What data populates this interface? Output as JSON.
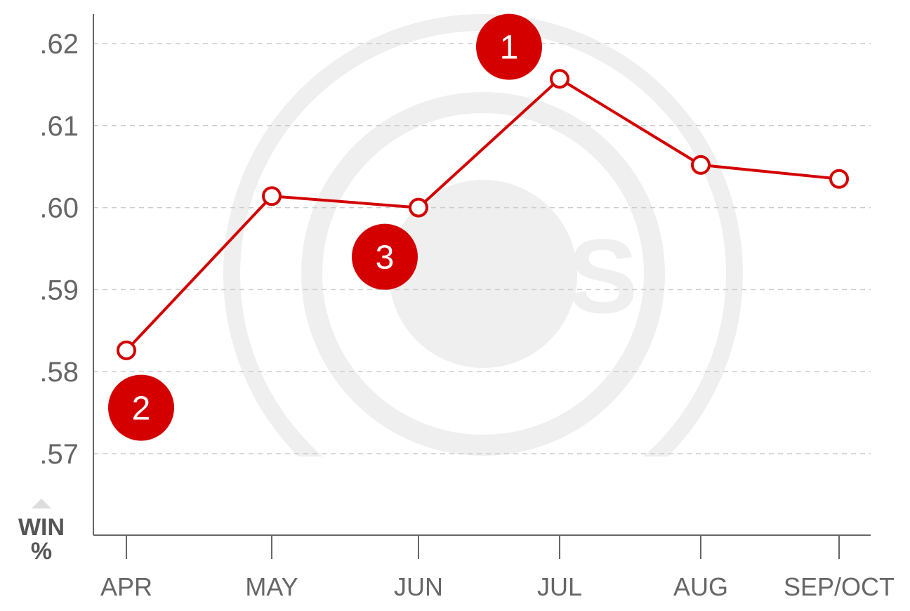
{
  "chart_data": {
    "type": "line",
    "categories": [
      "APR",
      "MAY",
      "JUN",
      "JUL",
      "AUG",
      "SEP/OCT"
    ],
    "series": [
      {
        "values": [
          0.5826,
          0.6014,
          0.6,
          0.6157,
          0.6052,
          0.6035
        ]
      }
    ],
    "ylabel": "WIN %",
    "ylabel_lines": [
      "WIN",
      "%"
    ],
    "ylim": [
      0.565,
      0.625
    ],
    "y_ticks": [
      0.57,
      0.58,
      0.59,
      0.6,
      0.61,
      0.62
    ],
    "y_tick_labels": [
      ".57",
      ".58",
      ".59",
      ".60",
      ".61",
      ".62"
    ],
    "grid": true,
    "annotations": [
      {
        "label": "1",
        "x": "JUL",
        "y": 0.6196
      },
      {
        "label": "2",
        "x": "APR",
        "y": 0.5756
      },
      {
        "label": "3",
        "x": "JUN",
        "y": 0.594
      }
    ],
    "watermark": {
      "name": "cubs-logo",
      "text": "UBS"
    },
    "colors": {
      "line": "#d40000",
      "badge": "#d40000",
      "grid": "#cccccc",
      "axis": "#666666",
      "watermark": "#efefef"
    }
  }
}
